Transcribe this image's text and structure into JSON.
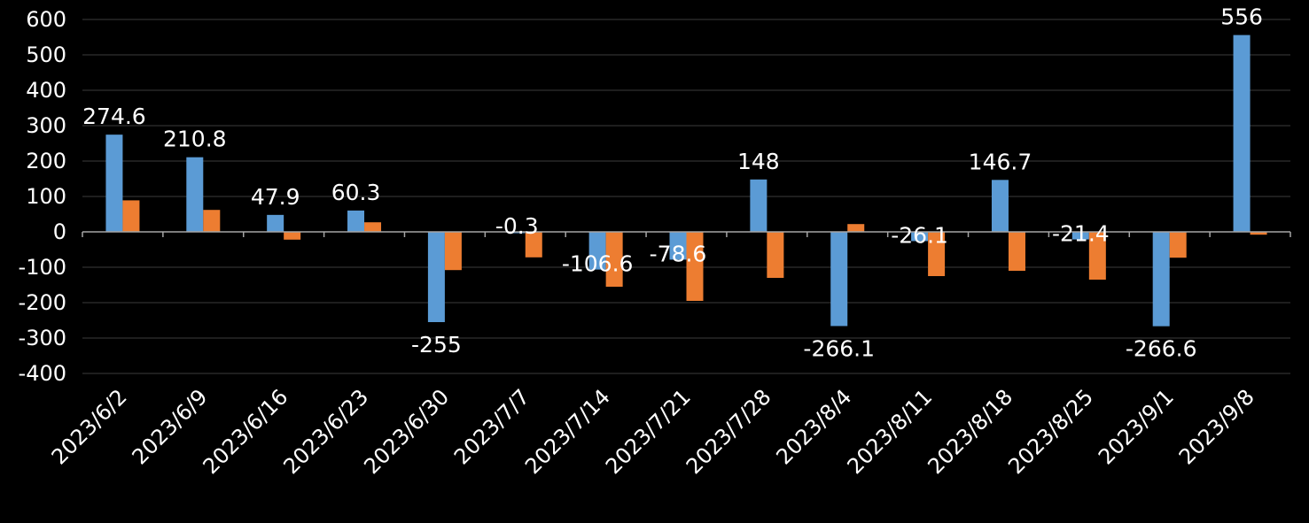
{
  "chart_data": {
    "type": "bar",
    "categories": [
      "2023/6/2",
      "2023/6/9",
      "2023/6/16",
      "2023/6/23",
      "2023/6/30",
      "2023/7/7",
      "2023/7/14",
      "2023/7/21",
      "2023/7/28",
      "2023/8/4",
      "2023/8/11",
      "2023/8/18",
      "2023/8/25",
      "2023/9/1",
      "2023/9/8"
    ],
    "series": [
      {
        "color": "#5b9bd5",
        "values": [
          274.6,
          210.8,
          47.9,
          60.3,
          -255,
          -0.3,
          -106.6,
          -78.6,
          148,
          -266.1,
          -26.1,
          146.7,
          -21.4,
          -266.6,
          556
        ],
        "labels": [
          "274.6",
          "210.8",
          "47.9",
          "60.3",
          "-255",
          "-0.3",
          "-106.6",
          "-78.6",
          "148",
          "-266.1",
          "-26.1",
          "146.7",
          "-21.4",
          "-266.6",
          "556"
        ]
      },
      {
        "color": "#ed7d31",
        "values": [
          89,
          62,
          -22,
          27,
          -108,
          -72,
          -155,
          -195,
          -130,
          22,
          -125,
          -110,
          -135,
          -73,
          -8
        ]
      }
    ],
    "yticks": [
      "600",
      "500",
      "400",
      "300",
      "200",
      "100",
      "0",
      "-100",
      "-200",
      "-300",
      "-400"
    ],
    "ylim": [
      -400,
      600
    ],
    "grid": true,
    "legend": "none"
  }
}
